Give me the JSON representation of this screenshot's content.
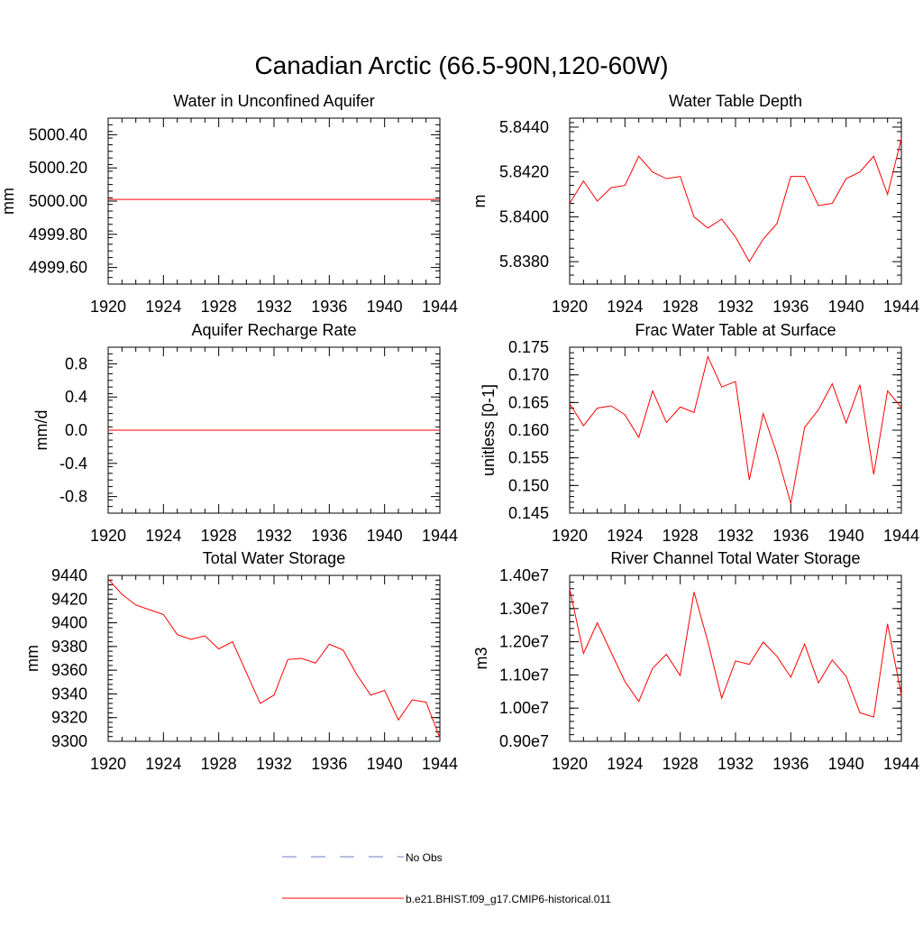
{
  "page": {
    "title": "Canadian Arctic (66.5-90N,120-60W)"
  },
  "legend": {
    "items": [
      {
        "label": "No Obs",
        "color": "#6b7fc4",
        "dash": true
      },
      {
        "label": "b.e21.BHIST.f09_g17.CMIP6-historical.011",
        "color": "#ff0000",
        "dash": false
      }
    ]
  },
  "chart_data": [
    {
      "type": "line",
      "title": "Water in Unconfined Aquifer",
      "ylabel": "mm",
      "xlim": [
        1920,
        1944
      ],
      "ylim": [
        4999.5,
        5000.5
      ],
      "xticks": [
        1920,
        1924,
        1928,
        1932,
        1936,
        1940,
        1944
      ],
      "yticks": [
        4999.6,
        4999.8,
        5000.0,
        5000.2,
        5000.4
      ],
      "yticklabels": [
        "4999.60",
        "4999.80",
        "5000.00",
        "5000.20",
        "5000.40"
      ],
      "yminor_step": 0.04,
      "x": [
        1920,
        1921,
        1922,
        1923,
        1924,
        1925,
        1926,
        1927,
        1928,
        1929,
        1930,
        1931,
        1932,
        1933,
        1934,
        1935,
        1936,
        1937,
        1938,
        1939,
        1940,
        1941,
        1942,
        1943,
        1944
      ],
      "series": [
        {
          "values": [
            5000.01,
            5000.01,
            5000.01,
            5000.01,
            5000.01,
            5000.01,
            5000.01,
            5000.01,
            5000.01,
            5000.01,
            5000.01,
            5000.01,
            5000.01,
            5000.01,
            5000.01,
            5000.01,
            5000.01,
            5000.01,
            5000.01,
            5000.01,
            5000.01,
            5000.01,
            5000.01,
            5000.01,
            5000.01
          ],
          "color": "#ff0000"
        }
      ]
    },
    {
      "type": "line",
      "title": "Water Table Depth",
      "ylabel": "m",
      "xlim": [
        1920,
        1944
      ],
      "ylim": [
        5.837,
        5.8444
      ],
      "xticks": [
        1920,
        1924,
        1928,
        1932,
        1936,
        1940,
        1944
      ],
      "yticks": [
        5.838,
        5.84,
        5.842,
        5.844
      ],
      "yticklabels": [
        "5.8380",
        "5.8400",
        "5.8420",
        "5.8440"
      ],
      "yminor_step": 0.0004,
      "x": [
        1920,
        1921,
        1922,
        1923,
        1924,
        1925,
        1926,
        1927,
        1928,
        1929,
        1930,
        1931,
        1932,
        1933,
        1934,
        1935,
        1936,
        1937,
        1938,
        1939,
        1940,
        1941,
        1942,
        1943,
        1944
      ],
      "series": [
        {
          "values": [
            5.8406,
            5.8416,
            5.8407,
            5.8413,
            5.8414,
            5.8427,
            5.842,
            5.8417,
            5.8418,
            5.84,
            5.8395,
            5.8399,
            5.8391,
            5.838,
            5.839,
            5.8397,
            5.8418,
            5.8418,
            5.8405,
            5.8406,
            5.8417,
            5.842,
            5.8427,
            5.841,
            5.8435
          ],
          "color": "#ff0000"
        }
      ]
    },
    {
      "type": "line",
      "title": "Aquifer Recharge Rate",
      "ylabel": "mm/d",
      "xlim": [
        1920,
        1944
      ],
      "ylim": [
        -1.0,
        1.0
      ],
      "xticks": [
        1920,
        1924,
        1928,
        1932,
        1936,
        1940,
        1944
      ],
      "yticks": [
        -0.8,
        -0.4,
        0.0,
        0.4,
        0.8
      ],
      "yticklabels": [
        "-0.8",
        "-0.4",
        "0.0",
        "0.4",
        "0.8"
      ],
      "yminor_step": 0.08,
      "x": [
        1920,
        1921,
        1922,
        1923,
        1924,
        1925,
        1926,
        1927,
        1928,
        1929,
        1930,
        1931,
        1932,
        1933,
        1934,
        1935,
        1936,
        1937,
        1938,
        1939,
        1940,
        1941,
        1942,
        1943,
        1944
      ],
      "series": [
        {
          "values": [
            0,
            0,
            0,
            0,
            0,
            0,
            0,
            0,
            0,
            0,
            0,
            0,
            0,
            0,
            0,
            0,
            0,
            0,
            0,
            0,
            0,
            0,
            0,
            0,
            0
          ],
          "color": "#ff0000"
        }
      ]
    },
    {
      "type": "line",
      "title": "Frac Water Table at Surface",
      "ylabel": "unitless [0-1]",
      "xlim": [
        1920,
        1944
      ],
      "ylim": [
        0.145,
        0.175
      ],
      "xticks": [
        1920,
        1924,
        1928,
        1932,
        1936,
        1940,
        1944
      ],
      "yticks": [
        0.145,
        0.15,
        0.155,
        0.16,
        0.165,
        0.17,
        0.175
      ],
      "yticklabels": [
        "0.145",
        "0.150",
        "0.155",
        "0.160",
        "0.165",
        "0.170",
        "0.175"
      ],
      "yminor_step": 0.001,
      "x": [
        1920,
        1921,
        1922,
        1923,
        1924,
        1925,
        1926,
        1927,
        1928,
        1929,
        1930,
        1931,
        1932,
        1933,
        1934,
        1935,
        1936,
        1937,
        1938,
        1939,
        1940,
        1941,
        1942,
        1943,
        1944
      ],
      "series": [
        {
          "values": [
            0.1648,
            0.1608,
            0.164,
            0.1644,
            0.1628,
            0.1587,
            0.1671,
            0.1614,
            0.1642,
            0.1632,
            0.1733,
            0.1678,
            0.1688,
            0.151,
            0.163,
            0.1557,
            0.1467,
            0.1605,
            0.1637,
            0.1684,
            0.1613,
            0.1682,
            0.152,
            0.1671,
            0.1641
          ],
          "color": "#ff0000"
        }
      ]
    },
    {
      "type": "line",
      "title": "Total Water Storage",
      "ylabel": "mm",
      "xlim": [
        1920,
        1944
      ],
      "ylim": [
        9300,
        9440
      ],
      "xticks": [
        1920,
        1924,
        1928,
        1932,
        1936,
        1940,
        1944
      ],
      "yticks": [
        9300,
        9320,
        9340,
        9360,
        9380,
        9400,
        9420,
        9440
      ],
      "yticklabels": [
        "9300",
        "9320",
        "9340",
        "9360",
        "9380",
        "9400",
        "9420",
        "9440"
      ],
      "yminor_step": 4,
      "x": [
        1920,
        1921,
        1922,
        1923,
        1924,
        1925,
        1926,
        1927,
        1928,
        1929,
        1930,
        1931,
        1932,
        1933,
        1934,
        1935,
        1936,
        1937,
        1938,
        1939,
        1940,
        1941,
        1942,
        1943,
        1944
      ],
      "series": [
        {
          "values": [
            9437,
            9424,
            9415,
            9411,
            9407,
            9390,
            9386,
            9389,
            9378,
            9384,
            9358,
            9332,
            9339,
            9369,
            9370,
            9366,
            9382,
            9377,
            9356,
            9339,
            9343,
            9318,
            9335,
            9333,
            9303
          ],
          "color": "#ff0000"
        }
      ]
    },
    {
      "type": "line",
      "title": "River Channel Total Water Storage",
      "ylabel": "m3",
      "xlim": [
        1920,
        1944
      ],
      "ylim": [
        9000000,
        14000000
      ],
      "xticks": [
        1920,
        1924,
        1928,
        1932,
        1936,
        1940,
        1944
      ],
      "yticks": [
        9000000,
        10000000,
        11000000,
        12000000,
        13000000,
        14000000
      ],
      "yticklabels": [
        "0.90e7",
        "1.00e7",
        "1.10e7",
        "1.20e7",
        "1.30e7",
        "1.40e7"
      ],
      "yminor_step": 200000,
      "x": [
        1920,
        1921,
        1922,
        1923,
        1924,
        1925,
        1926,
        1927,
        1928,
        1929,
        1930,
        1931,
        1932,
        1933,
        1934,
        1935,
        1936,
        1937,
        1938,
        1939,
        1940,
        1941,
        1942,
        1943,
        1944
      ],
      "series": [
        {
          "values": [
            13600000,
            11650000,
            12570000,
            11680000,
            10800000,
            10200000,
            11200000,
            11620000,
            10980000,
            13500000,
            12000000,
            10300000,
            11420000,
            11320000,
            11990000,
            11560000,
            10930000,
            11930000,
            10760000,
            11450000,
            10960000,
            9860000,
            9730000,
            12540000,
            10390000
          ],
          "color": "#ff0000"
        }
      ]
    }
  ]
}
